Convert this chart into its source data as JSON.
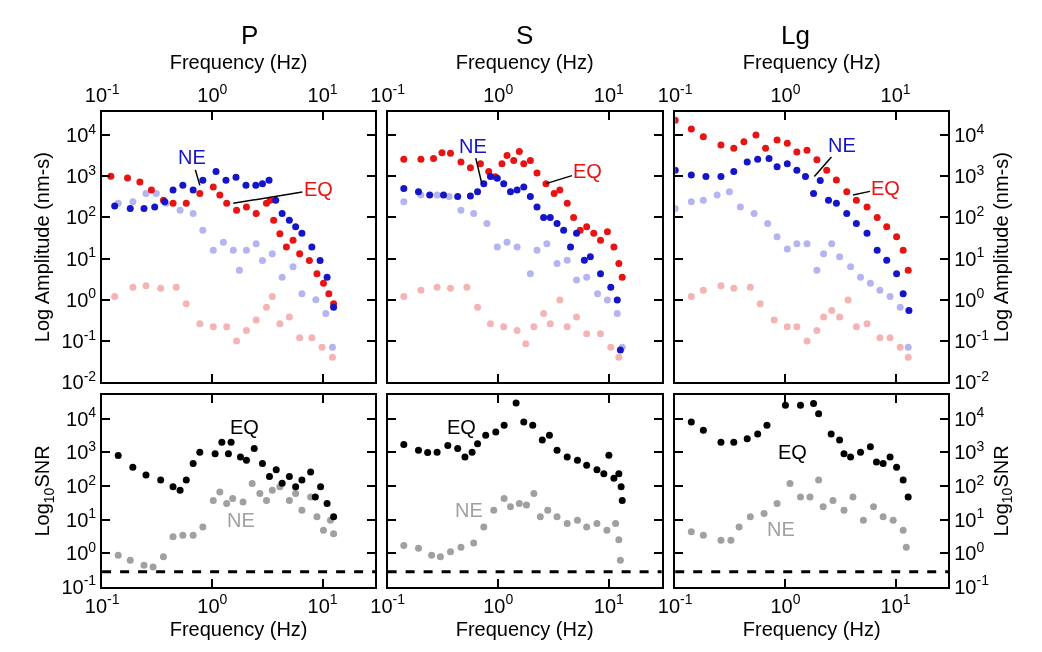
{
  "chart_data": [
    {
      "type": "scatter",
      "title": "P",
      "xlabel": "Frequency (Hz)",
      "ylabel": "Log Amplitude (nm-s)",
      "log": "xy",
      "marker": "circle",
      "xlim": [
        0.1,
        30
      ],
      "xticks": [
        {
          "value": 0.1,
          "label": "10$^{-1}$"
        },
        {
          "value": 1,
          "label": "10$^{0}$"
        },
        {
          "value": 10,
          "label": "10$^{1}$"
        }
      ],
      "ylim": [
        0.01,
        36000
      ],
      "yticks": [
        {
          "value": 0.01,
          "label": "10$^{-2}$"
        },
        {
          "value": 0.1,
          "label": "10$^{-1}$"
        },
        {
          "value": 1,
          "label": "10$^{0}$"
        },
        {
          "value": 10,
          "label": "10$^{1}$"
        },
        {
          "value": 100,
          "label": "10$^{2}$"
        },
        {
          "value": 1000,
          "label": "10$^{3}$"
        },
        {
          "value": 10000,
          "label": "10$^{4}$"
        }
      ],
      "series": [
        {
          "color": "#1414c8",
          "x": [
            0.13,
            0.18,
            0.24,
            0.3,
            0.37,
            0.44,
            0.54,
            0.67,
            0.82,
            1.08,
            1.33,
            1.64,
            2.02,
            2.48,
            2.85,
            3.27,
            3.76,
            4.3,
            5.0,
            5.7,
            6.5,
            8.0,
            9.5,
            11,
            12.6
          ],
          "values": [
            190,
            165,
            165,
            180,
            240,
            460,
            600,
            460,
            800,
            1300,
            800,
            950,
            600,
            600,
            660,
            800,
            260,
            125,
            85,
            59,
            41,
            19,
            9,
            3.5,
            0.66
          ]
        },
        {
          "color": "#e81414",
          "x": [
            0.12,
            0.17,
            0.22,
            0.28,
            0.36,
            0.44,
            0.58,
            0.77,
            1.02,
            1.17,
            1.35,
            1.66,
            2.04,
            2.5,
            3.1,
            3.35,
            3.6,
            4.1,
            4.7,
            5.4,
            6.2,
            7.6,
            8.9,
            10.2,
            11.4,
            12.6
          ],
          "values": [
            1000,
            900,
            720,
            460,
            260,
            220,
            220,
            380,
            550,
            350,
            220,
            150,
            180,
            125,
            220,
            260,
            85,
            40,
            19,
            28,
            13,
            9,
            4.3,
            2.5,
            1.4,
            0.8
          ]
        },
        {
          "color": "#b4b4f0",
          "x": [
            0.14,
            0.19,
            0.25,
            0.31,
            0.38,
            0.51,
            0.67,
            0.82,
            1.02,
            1.26,
            1.55,
            1.76,
            2.04,
            2.5,
            2.85,
            3.5,
            4.3,
            5.4,
            6.5,
            8.7,
            10.7,
            12.3
          ],
          "values": [
            220,
            240,
            380,
            380,
            220,
            150,
            125,
            49,
            16,
            25,
            16,
            5.2,
            16,
            23,
            9,
            13,
            3.5,
            6.3,
            1.4,
            1.0,
            0.46,
            0.07
          ]
        },
        {
          "color": "#f5b4b4",
          "x": [
            0.13,
            0.19,
            0.25,
            0.34,
            0.47,
            0.58,
            0.77,
            1.02,
            1.35,
            1.66,
            2.04,
            2.5,
            3.1,
            3.5,
            4.1,
            5.0,
            6.2,
            8.0,
            9.9,
            12.3
          ],
          "values": [
            1.2,
            2.0,
            2.2,
            1.9,
            2.0,
            0.8,
            0.26,
            0.22,
            0.22,
            0.1,
            0.18,
            0.32,
            0.66,
            1.2,
            0.26,
            0.38,
            0.12,
            0.12,
            0.07,
            0.04
          ]
        }
      ],
      "annotations": [
        {
          "text": "NE",
          "x": 0.77,
          "y": 600
        },
        {
          "text": "EQ",
          "x": 1.55,
          "y": 220
        }
      ]
    },
    {
      "type": "scatter",
      "title": "S",
      "xlabel": "Frequency (Hz)",
      "log": "xy",
      "marker": "circle",
      "tick_labels": "x",
      "xlim": [
        0.1,
        30
      ],
      "xticks": [
        {
          "value": 0.1,
          "label": "10$^{-1}$"
        },
        {
          "value": 1,
          "label": "10$^{0}$"
        },
        {
          "value": 10,
          "label": "10$^{1}$"
        }
      ],
      "ylim": [
        0.01,
        36000
      ],
      "yticks": [
        {
          "value": 0.01,
          "label": "10$^{-2}$"
        },
        {
          "value": 0.1,
          "label": "10$^{-1}$"
        },
        {
          "value": 1,
          "label": "10$^{0}$"
        },
        {
          "value": 10,
          "label": "10$^{1}$"
        },
        {
          "value": 100,
          "label": "10$^{2}$"
        },
        {
          "value": 1000,
          "label": "10$^{3}$"
        },
        {
          "value": 10000,
          "label": "10$^{4}$"
        }
      ],
      "series": [
        {
          "color": "#1414c8",
          "x": [
            0.14,
            0.19,
            0.24,
            0.32,
            0.43,
            0.56,
            0.65,
            0.74,
            0.85,
            0.98,
            1.12,
            1.29,
            1.48,
            1.7,
            1.95,
            2.24,
            2.57,
            2.95,
            3.4,
            3.9,
            4.5,
            5.1,
            6.0,
            6.8,
            8.4,
            10.4,
            11.9,
            12.7
          ],
          "values": [
            500,
            420,
            350,
            350,
            320,
            330,
            420,
            660,
            980,
            890,
            660,
            420,
            460,
            550,
            320,
            180,
            100,
            100,
            71,
            49,
            19,
            41,
            9.1,
            11,
            4.3,
            2.0,
            0.98,
            0.06
          ]
        },
        {
          "color": "#e81414",
          "x": [
            0.14,
            0.2,
            0.26,
            0.31,
            0.37,
            0.46,
            0.56,
            0.69,
            0.82,
            0.94,
            1.08,
            1.2,
            1.38,
            1.55,
            1.7,
            1.95,
            2.24,
            2.7,
            3.2,
            3.6,
            4.2,
            4.8,
            5.5,
            6.3,
            7.3,
            8.4,
            9.7,
            11.1,
            12.3,
            13.2
          ],
          "values": [
            2600,
            2600,
            2700,
            3700,
            3600,
            2200,
            1600,
            2000,
            1300,
            970,
            2000,
            3200,
            2400,
            4000,
            2000,
            2400,
            1200,
            660,
            380,
            460,
            220,
            100,
            49,
            59,
            41,
            28,
            45,
            19,
            7.6,
            3.5
          ]
        },
        {
          "color": "#b4b4f0",
          "x": [
            0.14,
            0.2,
            0.28,
            0.36,
            0.46,
            0.6,
            0.79,
            0.98,
            1.2,
            1.48,
            1.95,
            2.24,
            2.75,
            3.4,
            4.2,
            5.1,
            6.3,
            7.9,
            9.7,
            11.9,
            13.2
          ],
          "values": [
            240,
            350,
            350,
            320,
            150,
            125,
            71,
            19,
            25,
            19,
            4.3,
            16,
            23,
            7.6,
            9.1,
            3.0,
            3.5,
            1.4,
            0.98,
            0.46,
            0.07
          ]
        },
        {
          "color": "#f5b4b4",
          "x": [
            0.14,
            0.2,
            0.28,
            0.37,
            0.52,
            0.65,
            0.85,
            1.12,
            1.48,
            1.77,
            2.1,
            2.57,
            2.95,
            3.6,
            4.2,
            5.1,
            6.3,
            8.4,
            10.4,
            12.3
          ],
          "values": [
            1.2,
            1.7,
            2.0,
            1.9,
            2.0,
            0.66,
            0.26,
            0.22,
            0.18,
            0.085,
            0.22,
            0.46,
            0.26,
            0.98,
            0.22,
            0.38,
            0.15,
            0.15,
            0.07,
            0.04
          ]
        }
      ],
      "annotations": [
        {
          "text": "NE",
          "x": 0.71,
          "y": 660
        },
        {
          "text": "EQ",
          "x": 2.7,
          "y": 660
        }
      ]
    },
    {
      "type": "scatter",
      "title": "Lg",
      "xlabel": "Frequency (Hz)",
      "ylabel": "Log Amplitude (nm-s)",
      "log": "xy",
      "marker": "circle",
      "xlim": [
        0.1,
        30
      ],
      "xticks": [
        {
          "value": 0.1,
          "label": "10$^{-1}$"
        },
        {
          "value": 1,
          "label": "10$^{0}$"
        },
        {
          "value": 10,
          "label": "10$^{1}$"
        }
      ],
      "ylim": [
        0.01,
        36000
      ],
      "yticks": [
        {
          "value": 0.01,
          "label": "10$^{-2}$"
        },
        {
          "value": 0.1,
          "label": "10$^{-1}$"
        },
        {
          "value": 1,
          "label": "10$^{0}$"
        },
        {
          "value": 10,
          "label": "10$^{1}$"
        },
        {
          "value": 100,
          "label": "10$^{2}$"
        },
        {
          "value": 1000,
          "label": "10$^{3}$"
        },
        {
          "value": 10000,
          "label": "10$^{4}$"
        }
      ],
      "series": [
        {
          "color": "#1414c8",
          "x": [
            0.1,
            0.14,
            0.19,
            0.26,
            0.34,
            0.45,
            0.56,
            0.71,
            0.84,
            1.04,
            1.27,
            1.52,
            1.8,
            2.07,
            2.46,
            2.9,
            3.6,
            4.4,
            5.5,
            6.8,
            8.3,
            10.2,
            11.7,
            13.2
          ],
          "values": [
            1400,
            1070,
            980,
            980,
            1300,
            2200,
            2600,
            2700,
            1700,
            2000,
            1400,
            980,
            380,
            790,
            260,
            220,
            125,
            71,
            41,
            16,
            9.1,
            4.3,
            1.4,
            0.55
          ]
        },
        {
          "color": "#e81414",
          "x": [
            0.1,
            0.14,
            0.18,
            0.26,
            0.34,
            0.42,
            0.54,
            0.66,
            0.84,
            1.04,
            1.27,
            1.57,
            1.93,
            2.37,
            2.9,
            3.6,
            4.4,
            5.5,
            6.8,
            8.3,
            10.2,
            11.7,
            13
          ],
          "values": [
            23000,
            14000,
            9100,
            5700,
            4800,
            6900,
            10000,
            4800,
            7600,
            6300,
            3900,
            4300,
            2500,
            1400,
            810,
            420,
            260,
            180,
            100,
            59,
            34,
            16,
            5.2
          ]
        },
        {
          "color": "#b4b4f0",
          "x": [
            0.1,
            0.14,
            0.18,
            0.24,
            0.31,
            0.39,
            0.52,
            0.69,
            0.84,
            1.04,
            1.27,
            1.57,
            1.93,
            2.22,
            2.63,
            3.1,
            3.9,
            4.8,
            5.9,
            7.2,
            8.9,
            11,
            13
          ],
          "values": [
            165,
            240,
            260,
            350,
            420,
            180,
            125,
            71,
            34,
            17,
            23,
            23,
            5.2,
            13,
            23,
            11,
            6.3,
            3.5,
            2.5,
            1.7,
            1.2,
            0.66,
            0.07
          ]
        },
        {
          "color": "#f5b4b4",
          "x": [
            0.14,
            0.18,
            0.26,
            0.34,
            0.48,
            0.59,
            0.79,
            1.04,
            1.27,
            1.57,
            1.93,
            2.22,
            2.63,
            3.1,
            3.7,
            4.4,
            5.5,
            7.2,
            8.9,
            11,
            13
          ],
          "values": [
            1.2,
            1.7,
            2.2,
            1.9,
            2.0,
            0.8,
            0.32,
            0.22,
            0.22,
            0.1,
            0.18,
            0.38,
            0.55,
            0.38,
            0.98,
            0.22,
            0.26,
            0.12,
            0.12,
            0.07,
            0.04
          ]
        }
      ],
      "annotations": [
        {
          "text": "NE",
          "x": 1.83,
          "y": 980
        },
        {
          "text": "EQ",
          "x": 4.1,
          "y": 350
        }
      ]
    },
    {
      "type": "scatter",
      "xlabel": "Frequency (Hz)",
      "ylabel": "Log$_{10}$SNR",
      "log": "xy",
      "marker": "circle",
      "xlim": [
        0.1,
        30
      ],
      "xticks": [
        {
          "value": 0.1,
          "label": "10$^{-1}$"
        },
        {
          "value": 1,
          "label": "10$^{0}$"
        },
        {
          "value": 10,
          "label": "10$^{1}$"
        }
      ],
      "ylim": [
        0.1,
        50000
      ],
      "yticks": [
        {
          "value": 0.1,
          "label": "10$^{-1}$"
        },
        {
          "value": 1,
          "label": "10$^{0}$"
        },
        {
          "value": 10,
          "label": "10$^{1}$"
        },
        {
          "value": 100,
          "label": "10$^{2}$"
        },
        {
          "value": 1000,
          "label": "10$^{3}$"
        },
        {
          "value": 10000,
          "label": "10$^{4}$"
        }
      ],
      "series": [
        {
          "color": "#000000",
          "x": [
            0.14,
            0.19,
            0.25,
            0.34,
            0.44,
            0.51,
            0.58,
            0.67,
            0.77,
            1.06,
            1.22,
            1.4,
            1.48,
            1.8,
            2.04,
            2.4,
            2.85,
            3.3,
            3.8,
            4.3,
            5.0,
            5.7,
            6.5,
            7.8,
            8.6,
            9.6,
            11,
            12.6
          ],
          "values": [
            800,
            360,
            210,
            150,
            94,
            74,
            150,
            460,
            1000,
            910,
            2000,
            910,
            2000,
            720,
            580,
            1300,
            460,
            190,
            300,
            120,
            190,
            94,
            150,
            260,
            47,
            94,
            30,
            12
          ]
        },
        {
          "color": "#a0a0a0",
          "x": [
            0.14,
            0.18,
            0.24,
            0.29,
            0.36,
            0.44,
            0.54,
            0.67,
            0.82,
            1.02,
            1.17,
            1.35,
            1.53,
            1.9,
            2.3,
            2.7,
            3.1,
            3.5,
            4.1,
            5.0,
            5.7,
            6.5,
            7.8,
            8.9,
            10.2,
            11.8,
            12.6
          ],
          "values": [
            0.87,
            0.62,
            0.44,
            0.39,
            0.78,
            3.1,
            3.4,
            3.4,
            6.0,
            37,
            66,
            30,
            42,
            33,
            117,
            59,
            37,
            74,
            94,
            37,
            59,
            19,
            47,
            12,
            4.8,
            9.5,
            3.8
          ]
        }
      ],
      "ref_lines": [
        {
          "axis": "y",
          "value": 0.28,
          "color": "#000000",
          "line_style": "dashed"
        }
      ],
      "annotations": [
        "EQ",
        "NE"
      ]
    },
    {
      "type": "scatter",
      "xlabel": "Frequency (Hz)",
      "log": "xy",
      "marker": "circle",
      "tick_labels": "x",
      "xlim": [
        0.1,
        30
      ],
      "xticks": [
        {
          "value": 0.1,
          "label": "10$^{-1}$"
        },
        {
          "value": 1,
          "label": "10$^{0}$"
        },
        {
          "value": 10,
          "label": "10$^{1}$"
        }
      ],
      "ylim": [
        0.1,
        50000
      ],
      "yticks": [
        {
          "value": 0.1,
          "label": "10$^{-1}$"
        },
        {
          "value": 1,
          "label": "10$^{0}$"
        },
        {
          "value": 10,
          "label": "10$^{1}$"
        },
        {
          "value": 100,
          "label": "10$^{2}$"
        },
        {
          "value": 1000,
          "label": "10$^{3}$"
        },
        {
          "value": 10000,
          "label": "10$^{4}$"
        }
      ],
      "series": [
        {
          "color": "#000000",
          "x": [
            0.14,
            0.19,
            0.23,
            0.28,
            0.35,
            0.43,
            0.5,
            0.58,
            0.65,
            0.77,
            0.95,
            1.13,
            1.45,
            1.7,
            2.05,
            2.5,
            2.9,
            3.4,
            4.2,
            5.2,
            6.3,
            7.8,
            9.0,
            10.0,
            11.1,
            12.3,
            12.9,
            13.2
          ],
          "values": [
            1700,
            1150,
            980,
            1000,
            1600,
            1300,
            720,
            1000,
            1800,
            3200,
            4000,
            6300,
            29000,
            8000,
            6300,
            2300,
            3200,
            1150,
            720,
            580,
            410,
            300,
            230,
            810,
            170,
            230,
            94,
            37
          ]
        },
        {
          "color": "#a0a0a0",
          "x": [
            0.14,
            0.19,
            0.25,
            0.3,
            0.37,
            0.46,
            0.6,
            0.74,
            0.91,
            1.13,
            1.29,
            1.55,
            1.8,
            2.1,
            2.4,
            2.8,
            3.4,
            4.2,
            5.2,
            6.3,
            7.8,
            9.6,
            11.5,
            12.3,
            12.7
          ],
          "values": [
            1.7,
            1.4,
            0.87,
            0.78,
            1.1,
            1.5,
            2.0,
            6.0,
            19,
            42,
            24,
            30,
            27,
            59,
            12,
            19,
            12,
            7.6,
            9.5,
            6.0,
            7.6,
            4.8,
            7.6,
            2.5,
            0.62
          ]
        }
      ],
      "ref_lines": [
        {
          "axis": "y",
          "value": 0.28,
          "color": "#000000",
          "line_style": "dashed"
        }
      ],
      "annotations": [
        "EQ",
        "NE"
      ]
    },
    {
      "type": "scatter",
      "xlabel": "Frequency (Hz)",
      "ylabel": "Log$_{10}$SNR",
      "log": "xy",
      "marker": "circle",
      "xlim": [
        0.1,
        30
      ],
      "xticks": [
        {
          "value": 0.1,
          "label": "10$^{-1}$"
        },
        {
          "value": 1,
          "label": "10$^{0}$"
        },
        {
          "value": 10,
          "label": "10$^{1}$"
        }
      ],
      "ylim": [
        0.1,
        50000
      ],
      "yticks": [
        {
          "value": 0.1,
          "label": "10$^{-1}$"
        },
        {
          "value": 1,
          "label": "10$^{0}$"
        },
        {
          "value": 10,
          "label": "10$^{1}$"
        },
        {
          "value": 100,
          "label": "10$^{2}$"
        },
        {
          "value": 1000,
          "label": "10$^{3}$"
        },
        {
          "value": 10000,
          "label": "10$^{4}$"
        }
      ],
      "series": [
        {
          "color": "#000000",
          "x": [
            0.14,
            0.18,
            0.26,
            0.34,
            0.45,
            0.56,
            0.68,
            1.0,
            1.37,
            1.8,
            2.0,
            2.6,
            3.1,
            3.4,
            3.9,
            4.8,
            5.9,
            6.7,
            7.7,
            8.9,
            10.2,
            11.7,
            13
          ],
          "values": [
            8000,
            4500,
            2000,
            2000,
            2500,
            3500,
            6300,
            25000,
            25000,
            28000,
            14000,
            3500,
            2300,
            910,
            720,
            1000,
            1450,
            510,
            460,
            720,
            360,
            150,
            47
          ]
        },
        {
          "color": "#a0a0a0",
          "x": [
            0.14,
            0.18,
            0.26,
            0.32,
            0.38,
            0.48,
            0.64,
            0.84,
            1.1,
            1.37,
            1.67,
            2.0,
            2.2,
            2.7,
            3.4,
            4.1,
            5.1,
            6.3,
            7.7,
            9.5,
            11.7,
            12.5
          ],
          "values": [
            4.3,
            3.4,
            2.4,
            2.4,
            6.0,
            12,
            15,
            30,
            117,
            47,
            47,
            150,
            24,
            37,
            19,
            47,
            9.5,
            24,
            12,
            9.5,
            4.8,
            1.5
          ]
        }
      ],
      "ref_lines": [
        {
          "axis": "y",
          "value": 0.28,
          "color": "#000000",
          "line_style": "dashed"
        }
      ],
      "annotations": [
        "EQ",
        "NE"
      ]
    }
  ]
}
